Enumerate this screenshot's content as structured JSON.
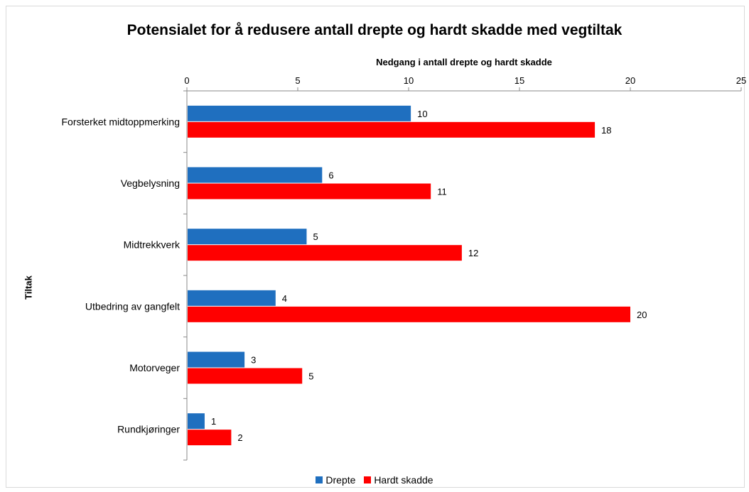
{
  "chart_data": {
    "type": "bar",
    "orientation": "horizontal",
    "title": "Potensialet for å redusere antall drepte og hardt skadde med vegtiltak",
    "xlabel": "Nedgang i antall drepte og hardt skadde",
    "ylabel": "Tiltak",
    "xlim": [
      0,
      25
    ],
    "x_ticks": [
      "0",
      "5",
      "10",
      "15",
      "20",
      "25"
    ],
    "x_axis_position": "top",
    "categories": [
      "Forsterket midtoppmerking",
      "Vegbelysning",
      "Midtrekkverk",
      "Utbedring av gangfelt",
      "Motorveger",
      "Rundkjøringer"
    ],
    "series": [
      {
        "name": "Drepte",
        "color": "#1f6fbf",
        "values": [
          10.1,
          6.1,
          5.4,
          4.0,
          2.6,
          0.8
        ],
        "labels": [
          "10",
          "6",
          "5",
          "4",
          "3",
          "1"
        ]
      },
      {
        "name": "Hardt skadde",
        "color": "#ff0000",
        "values": [
          18.4,
          11.0,
          12.4,
          20.0,
          5.2,
          2.0
        ],
        "labels": [
          "18",
          "11",
          "12",
          "20",
          "5",
          "2"
        ]
      }
    ],
    "grid": false,
    "legend_position": "bottom"
  }
}
